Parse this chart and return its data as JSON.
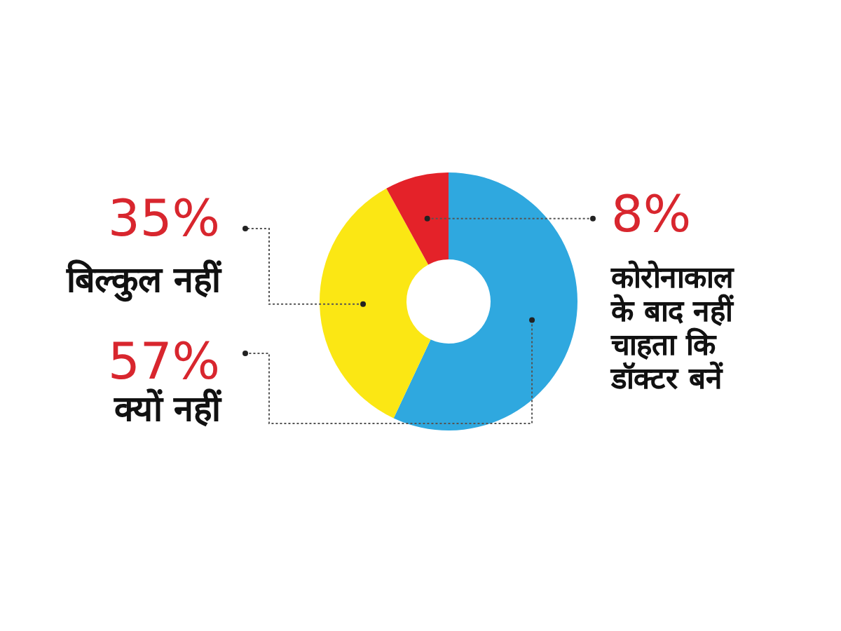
{
  "chart_data": {
    "type": "donut",
    "categories": [
      "क्यों नहीं",
      "बिल्कुल नहीं",
      "कोरोनाकाल के बाद नहीं चाहता कि डॉक्टर बनें"
    ],
    "values": [
      57,
      35,
      8
    ],
    "colors": [
      "#2fa8df",
      "#fbe714",
      "#e42229"
    ],
    "value_labels": [
      "57%",
      "35%",
      "8%"
    ]
  }
}
